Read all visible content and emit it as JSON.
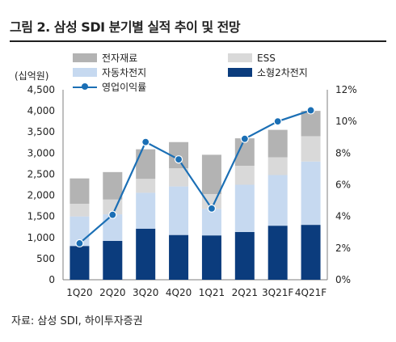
{
  "title": "그림 2. 삼성 SDI 분기별 실적 추이 및 전망",
  "source": "자료: 삼성 SDI, 하이투자증권",
  "colors": {
    "전자재료": "#b3b3b3",
    "ESS": "#d9d9d9",
    "자동차전지": "#c6d9f0",
    "소형2차전지": "#0b3c7d",
    "영업이익률": "#1b6fb5"
  },
  "chart_data": {
    "type": "bar",
    "stacked": true,
    "title": "",
    "ylabel": "(십억원)",
    "y2label": "",
    "categories": [
      "1Q20",
      "2Q20",
      "3Q20",
      "4Q20",
      "1Q21",
      "2Q21",
      "3Q21F",
      "4Q21F"
    ],
    "ylim": [
      0,
      4500
    ],
    "yticks": [
      0,
      500,
      1000,
      1500,
      2000,
      2500,
      3000,
      3500,
      4000,
      4500
    ],
    "ytick_labels": [
      "0",
      "500",
      "1,000",
      "1,500",
      "2,000",
      "2,500",
      "3,000",
      "3,500",
      "4,000",
      "4,500"
    ],
    "y2lim": [
      0,
      12
    ],
    "y2ticks": [
      0,
      2,
      4,
      6,
      8,
      10,
      12
    ],
    "y2tick_labels": [
      "0%",
      "2%",
      "4%",
      "6%",
      "8%",
      "10%",
      "12%"
    ],
    "grid": false,
    "legend_position": "top",
    "series": [
      {
        "name": "소형2차전지",
        "type": "bar",
        "values": [
          800,
          920,
          1210,
          1060,
          1050,
          1130,
          1280,
          1300
        ]
      },
      {
        "name": "자동차전지",
        "type": "bar",
        "values": [
          700,
          630,
          850,
          1150,
          630,
          1120,
          1200,
          1500
        ]
      },
      {
        "name": "ESS",
        "type": "bar",
        "values": [
          300,
          350,
          330,
          430,
          350,
          450,
          420,
          600
        ]
      },
      {
        "name": "전자재료",
        "type": "bar",
        "values": [
          600,
          650,
          700,
          620,
          930,
          650,
          650,
          600
        ]
      },
      {
        "name": "영업이익률",
        "type": "line",
        "axis": "right",
        "values": [
          2.3,
          4.1,
          8.7,
          7.6,
          4.5,
          8.9,
          10.0,
          10.7
        ]
      }
    ]
  },
  "legend": [
    {
      "name": "전자재료",
      "kind": "box"
    },
    {
      "name": "ESS",
      "kind": "box"
    },
    {
      "name": "자동차전지",
      "kind": "box"
    },
    {
      "name": "소형2차전지",
      "kind": "box"
    },
    {
      "name": "영업이익률",
      "kind": "line"
    }
  ]
}
